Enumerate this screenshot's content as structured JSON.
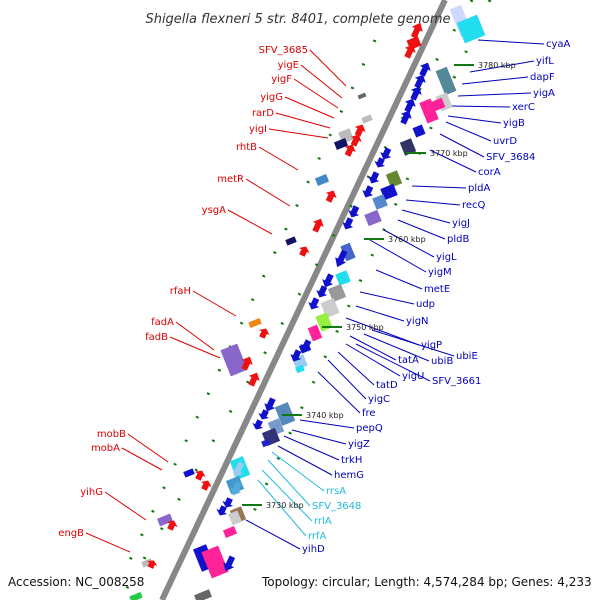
{
  "title": "Shigella flexneri 5 str. 8401, complete genome",
  "footer": {
    "accession": "Accession: NC_008258",
    "summary": "Topology: circular; Length: 4,574,284 bp; Genes: 4,233"
  },
  "colors": {
    "left_label": "#dd0000",
    "right_label": "#0000bb",
    "rna_label": "#22bbdd",
    "backbone": "#888888",
    "tick": "#117711"
  },
  "kbp_ticks": [
    "3780 kbp",
    "3770 kbp",
    "3760 kbp",
    "3750 kbp",
    "3740 kbp",
    "3730 kbp"
  ],
  "left_labels": [
    "SFV_3685",
    "yigE",
    "yigF",
    "yigG",
    "rarD",
    "yigI",
    "rhtB",
    "metR",
    "ysgA",
    "rfaH",
    "fadA",
    "fadB",
    "mobB",
    "mobA",
    "yihG",
    "engB"
  ],
  "right_labels": [
    "cyaA",
    "yifL",
    "dapF",
    "yigA",
    "xerC",
    "yigB",
    "uvrD",
    "SFV_3684",
    "corA",
    "pldA",
    "recQ",
    "yigJ",
    "pldB",
    "yigL",
    "yigM",
    "metE",
    "udp",
    "yigN",
    "yigP",
    "ubiE",
    "ubiB",
    "tatA",
    "SFV_3661",
    "yigU",
    "tatD",
    "yigC",
    "fre",
    "pepQ",
    "yigZ",
    "trkH",
    "hemG",
    "rrsA",
    "SFV_3648",
    "rrlA",
    "rrfA",
    "yihD"
  ]
}
